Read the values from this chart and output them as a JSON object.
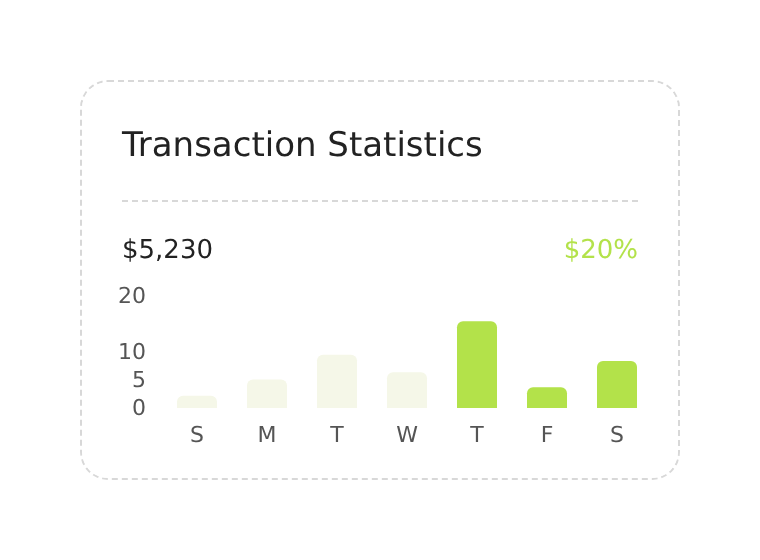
{
  "chart_data": {
    "type": "bar",
    "title": "Transaction Statistics",
    "annotations": [
      "$5,230",
      "$20%"
    ],
    "categories": [
      "S",
      "M",
      "T",
      "W",
      "T",
      "F",
      "S"
    ],
    "values": [
      2.2,
      5.1,
      9.5,
      6.4,
      15.5,
      3.7,
      8.4
    ],
    "colors": [
      "#f5f7e8",
      "#f5f7e8",
      "#f5f7e8",
      "#f5f7e8",
      "#b3e24a",
      "#b3e24a",
      "#b3e24a"
    ],
    "ylim": [
      0,
      20
    ],
    "yticks": [
      0,
      5,
      10,
      20
    ],
    "grid": false
  }
}
